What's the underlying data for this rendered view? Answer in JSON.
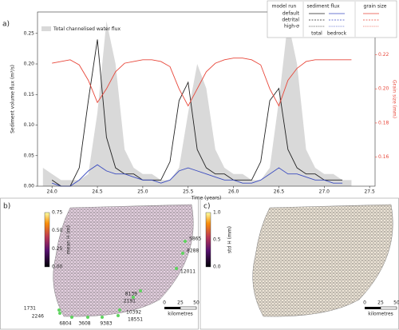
{
  "chart_data": {
    "type": "line",
    "panel_label": "a)",
    "xlabel": "Time (years)",
    "ylabel": "Sediment volume flux (m³/s)",
    "y2label": "Grain size (mm)",
    "x": [
      23.9,
      24.0,
      24.1,
      24.2,
      24.3,
      24.4,
      24.5,
      24.6,
      24.7,
      24.8,
      24.9,
      25.0,
      25.1,
      25.2,
      25.3,
      25.4,
      25.5,
      25.6,
      25.7,
      25.8,
      25.9,
      26.0,
      26.1,
      26.2,
      26.3,
      26.4,
      26.5,
      26.6,
      26.7,
      26.8,
      26.9,
      27.0,
      27.1,
      27.2,
      27.3
    ],
    "series": [
      {
        "name": "Total channelised water flux",
        "color": "#d9d9d9",
        "fill": true,
        "values": [
          0.03,
          0.02,
          0.01,
          0.01,
          0.01,
          0.02,
          0.12,
          0.27,
          0.2,
          0.06,
          0.03,
          0.02,
          0.02,
          0.01,
          0.01,
          0.03,
          0.12,
          0.2,
          0.16,
          0.06,
          0.03,
          0.02,
          0.02,
          0.01,
          0.01,
          0.03,
          0.14,
          0.27,
          0.2,
          0.06,
          0.03,
          0.02,
          0.02,
          0.01,
          0.01
        ]
      },
      {
        "name": "total",
        "color": "#222222",
        "values": [
          null,
          0.01,
          0.0,
          0.0,
          0.03,
          0.14,
          0.24,
          0.08,
          0.03,
          0.02,
          0.02,
          0.01,
          0.01,
          0.01,
          0.04,
          0.14,
          0.17,
          0.06,
          0.03,
          0.02,
          0.02,
          0.01,
          0.01,
          0.01,
          0.04,
          0.14,
          0.16,
          0.06,
          0.03,
          0.02,
          0.02,
          0.01,
          0.01,
          0.01,
          null
        ]
      },
      {
        "name": "bedrock",
        "color": "#3b4cc0",
        "values": [
          null,
          0.005,
          0.0,
          0.0,
          0.01,
          0.025,
          0.035,
          0.025,
          0.02,
          0.02,
          0.015,
          0.01,
          0.01,
          0.005,
          0.01,
          0.025,
          0.03,
          0.025,
          0.02,
          0.015,
          0.01,
          0.01,
          0.005,
          0.005,
          0.01,
          0.02,
          0.03,
          0.02,
          0.02,
          0.015,
          0.01,
          0.01,
          0.005,
          0.005,
          null
        ]
      },
      {
        "name": "grain size",
        "color": "#e8473a",
        "axis": "y2",
        "values": [
          null,
          0.215,
          0.216,
          0.217,
          0.214,
          0.205,
          0.192,
          0.2,
          0.21,
          0.215,
          0.216,
          0.217,
          0.217,
          0.216,
          0.213,
          0.2,
          0.19,
          0.2,
          0.21,
          0.215,
          0.217,
          0.218,
          0.218,
          0.217,
          0.214,
          0.2,
          0.19,
          0.205,
          0.212,
          0.216,
          0.217,
          0.217,
          0.217,
          0.217,
          0.217
        ]
      }
    ],
    "xlim": [
      23.84,
      27.56
    ],
    "xticks": [
      {
        "value": 24,
        "label": "24.0"
      },
      {
        "value": 24.5,
        "label": "24.5"
      },
      {
        "value": 25,
        "label": "25.0"
      },
      {
        "value": 25.5,
        "label": "25.5"
      },
      {
        "value": 26,
        "label": "26.0"
      },
      {
        "value": 26.5,
        "label": "26.5"
      },
      {
        "value": 27,
        "label": "27.0"
      },
      {
        "value": 27.5,
        "label": "27.5"
      }
    ],
    "ylim": [
      0,
      0.285
    ],
    "yticks": [
      {
        "value": 0,
        "label": "0.00"
      },
      {
        "value": 0.05,
        "label": "0.05"
      },
      {
        "value": 0.1,
        "label": "0.10"
      },
      {
        "value": 0.15,
        "label": "0.15"
      },
      {
        "value": 0.2,
        "label": "0.20"
      },
      {
        "value": 0.25,
        "label": "0.25"
      }
    ],
    "y2lim": [
      0.143,
      0.245
    ],
    "y2ticks": [
      0.16,
      0.18,
      {
        "value": 0.2,
        "label": "0.20"
      },
      0.22
    ],
    "legend": {
      "headers": [
        "model run",
        "sediment flux"
      ],
      "rows": [
        "default",
        "detrital",
        "high-σ"
      ]
    }
  },
  "maps": [
    {
      "label": "b)",
      "colorbar": {
        "title": "mean H (m)",
        "ticks": [
          "0.00",
          "0.25",
          "0.50",
          "0.75"
        ]
      },
      "nodes": [
        "5865",
        "8288",
        "12011",
        "8139",
        "2191",
        "10392",
        "18551",
        "9383",
        "3608",
        "6804",
        "2246",
        "1731"
      ],
      "scale_bar": {
        "ticks": [
          "0",
          "25",
          "50"
        ],
        "unit": "kilometres"
      }
    },
    {
      "label": "c)",
      "colorbar": {
        "title": "std H (mm)",
        "ticks": [
          "0.0",
          "0.5",
          "1.0"
        ]
      },
      "scale_bar": {
        "ticks": [
          "0",
          "25",
          "50"
        ],
        "unit": "kilometres"
      }
    }
  ]
}
